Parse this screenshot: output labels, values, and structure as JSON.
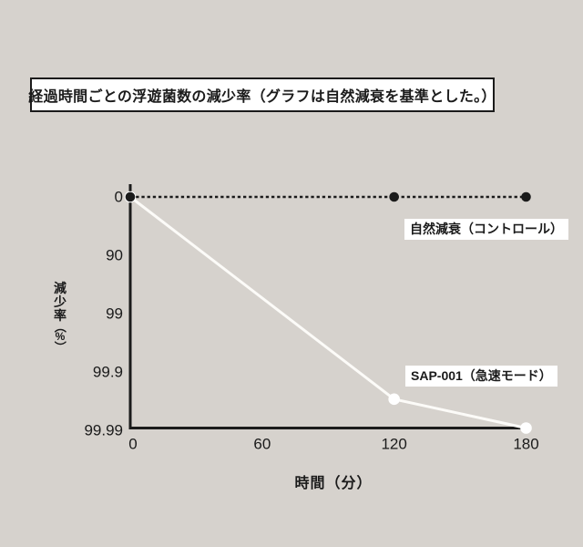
{
  "colors": {
    "background": "#d6d2cd",
    "axis": "#1b1b1b",
    "text": "#1b1b1b",
    "label_background": "#ffffff",
    "control_series": "#1b1b1b",
    "sap_series": "#fcfbf8",
    "sap_marker": "#ffffff"
  },
  "chart_data": {
    "type": "line",
    "title": "経過時間ごとの浮遊菌数の減少率（グラフは自然減衰を基準とした。）",
    "xlabel": "時間（分）",
    "ylabel": "減少率（%）",
    "x_tick_values": [
      0,
      60,
      120,
      180
    ],
    "x_ticks": [
      "0",
      "60",
      "120",
      "180"
    ],
    "y_ticks": [
      "0",
      "90",
      "99",
      "99.9",
      "99.99"
    ],
    "x_range": [
      0,
      180
    ],
    "y_scale": "logarithmic reduction, one decade per tick (0 → 99.99%)",
    "grid": false,
    "legend_position": "inline labels beside lines",
    "series": [
      {
        "name": "自然減衰（コントロール）",
        "line_style": "dashed",
        "color": "#1b1b1b",
        "marker_color": "#1b1b1b",
        "marker_radius": 5.3,
        "line_width": 2.6,
        "points": [
          {
            "x": 0,
            "percent": 0,
            "decades": 0
          },
          {
            "x": 120,
            "percent": 0,
            "decades": 0
          },
          {
            "x": 180,
            "percent": 0,
            "decades": 0
          }
        ]
      },
      {
        "name": "SAP-001（急速モード）",
        "line_style": "solid",
        "color": "#fcfbf8",
        "marker_color": "#ffffff",
        "marker_radius": 6.3,
        "line_width": 3,
        "points": [
          {
            "x": 0,
            "percent": 0,
            "decades": 0
          },
          {
            "x": 120,
            "percent": 99.97,
            "decades": 3.5
          },
          {
            "x": 180,
            "percent": 99.99,
            "decades": 4
          }
        ]
      }
    ]
  }
}
